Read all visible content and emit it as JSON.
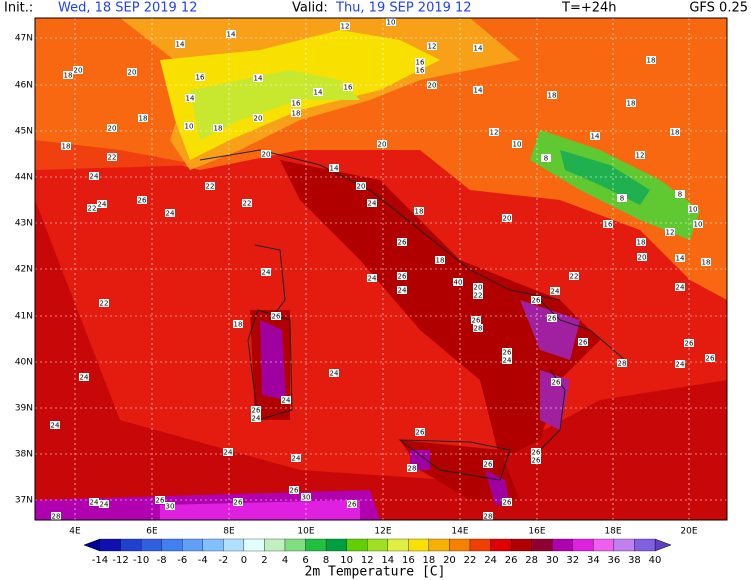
{
  "header": {
    "init_label": "Init.:",
    "init_value": "Wed, 18 SEP 2019  12",
    "valid_label": "Valid:",
    "valid_value": "Thu, 19 SEP 2019  12",
    "step": "T=+24h",
    "model": "GFS 0.25"
  },
  "lat_labels": [
    "47N",
    "46N",
    "45N",
    "44N",
    "43N",
    "42N",
    "41N",
    "40N",
    "39N",
    "38N",
    "37N"
  ],
  "lon_labels": [
    "4E",
    "6E",
    "8E",
    "10E",
    "12E",
    "14E",
    "16E",
    "18E",
    "20E"
  ],
  "colorbar": {
    "title": "2m Temperature [C]",
    "ticks": [
      -14,
      -12,
      -10,
      -8,
      -6,
      -4,
      -2,
      0,
      2,
      4,
      6,
      8,
      10,
      12,
      14,
      16,
      18,
      20,
      22,
      24,
      26,
      28,
      30,
      32,
      34,
      36,
      38,
      40
    ],
    "colors": [
      "#1010b0",
      "#2040d0",
      "#3060e0",
      "#4080f0",
      "#60a0f8",
      "#80c0ff",
      "#b0e0ff",
      "#e0ffff",
      "#c0f0c0",
      "#80e080",
      "#20c040",
      "#00a040",
      "#60d000",
      "#a0e020",
      "#e0f040",
      "#f8e000",
      "#f8b000",
      "#f88000",
      "#f04000",
      "#e00000",
      "#b00000",
      "#900030",
      "#b000b0",
      "#e020e0",
      "#f060f0",
      "#c080f0",
      "#8060e0"
    ],
    "under_color": "#0000a0",
    "over_color": "#6040c0"
  },
  "map_labels": [
    14,
    14,
    12,
    10,
    12,
    16,
    16,
    14,
    18,
    18,
    20,
    20,
    16,
    14,
    16,
    14,
    20,
    14,
    18,
    18,
    14,
    16,
    18,
    20,
    10,
    18,
    20,
    18,
    12,
    14,
    18,
    18,
    20,
    10,
    8,
    12,
    22,
    20,
    14,
    24,
    22,
    20,
    8,
    8,
    26,
    22,
    22,
    24,
    24,
    24,
    18,
    20,
    10,
    10,
    16,
    12,
    26,
    18,
    20,
    14,
    18,
    18,
    24,
    24,
    26,
    22,
    40,
    20,
    22,
    24,
    24,
    24,
    26,
    22,
    26,
    28,
    26,
    26,
    18,
    26,
    26,
    24,
    26,
    26,
    28,
    24,
    24,
    24,
    26,
    24,
    26,
    24,
    24,
    26,
    24,
    24,
    28,
    26,
    26,
    26,
    24,
    24,
    26,
    30,
    26,
    26,
    30,
    26,
    26,
    28,
    28
  ]
}
